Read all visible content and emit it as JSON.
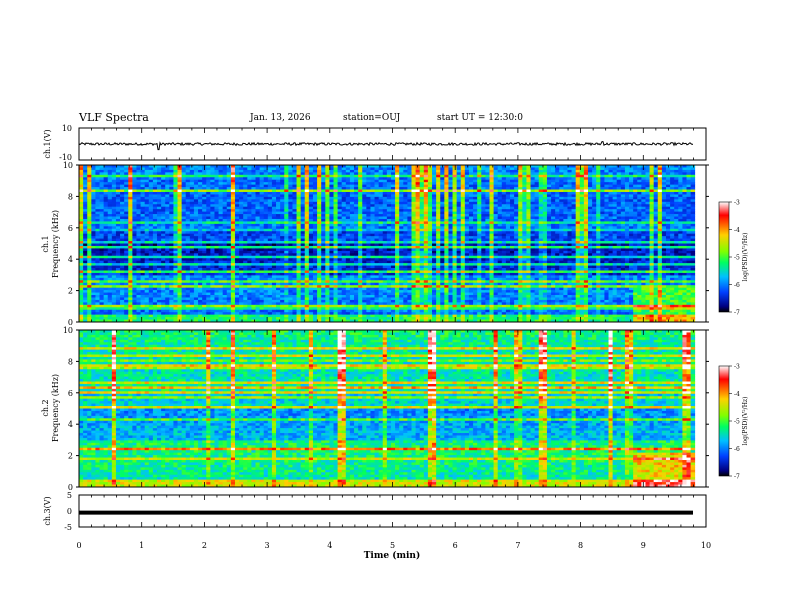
{
  "header": {
    "title": "VLF Spectra",
    "date": "Jan. 13, 2026",
    "station": "station=OUJ",
    "start": "start UT =  12:30:0"
  },
  "colorbar": {
    "label": "log(PSD)(V²/Hz)",
    "ticks": [
      "-3",
      "-4",
      "-5",
      "-6",
      "-7"
    ],
    "colors": [
      "#ffffff",
      "#ff0000",
      "#ffd000",
      "#80ff00",
      "#00ff60",
      "#00c0ff",
      "#0040ff",
      "#000080",
      "#000000"
    ]
  },
  "chart_data": [
    {
      "type": "line",
      "name": "ch1-waveform",
      "ylabel": "ch.1(V)",
      "ylim": [
        -10,
        10
      ],
      "yticks": [
        "10",
        "-10"
      ],
      "xlim": [
        0,
        10
      ],
      "description_values": {
        "mean": 0.0,
        "amplitude": 0.8
      },
      "spikes": [
        {
          "t": 1.27,
          "v": -3.5
        },
        {
          "t": 8.35,
          "v": 1.5
        }
      ]
    },
    {
      "type": "heatmap",
      "name": "ch1-spectrogram",
      "ylabel": "ch.1\nFrequency (kHz)",
      "ylabel_line1": "ch.1",
      "ylabel_line2": "Frequency (kHz)",
      "ylim": [
        0,
        10
      ],
      "yticks": [
        "0",
        "2",
        "4",
        "6",
        "8",
        "10"
      ],
      "xlim": [
        0,
        10
      ],
      "zlim": [
        -7,
        -3
      ],
      "data_end_min": 9.82
    },
    {
      "type": "heatmap",
      "name": "ch2-spectrogram",
      "ylabel_line1": "ch.2",
      "ylabel_line2": "Frequency (kHz)",
      "ylim": [
        0,
        10
      ],
      "yticks": [
        "0",
        "2",
        "4",
        "6",
        "8",
        "10"
      ],
      "xlim": [
        0,
        10
      ],
      "zlim": [
        -7,
        -3
      ],
      "data_end_min": 9.82
    },
    {
      "type": "line",
      "name": "ch3-waveform",
      "ylabel": "ch.3(V)",
      "ylim": [
        -5,
        5
      ],
      "yticks": [
        "5",
        "0",
        "-5"
      ],
      "xlim": [
        0,
        10
      ],
      "constant_value": -0.5
    }
  ],
  "xaxis": {
    "label": "Time (min)",
    "ticks": [
      "0",
      "1",
      "2",
      "3",
      "4",
      "5",
      "6",
      "7",
      "8",
      "9",
      "10"
    ]
  }
}
